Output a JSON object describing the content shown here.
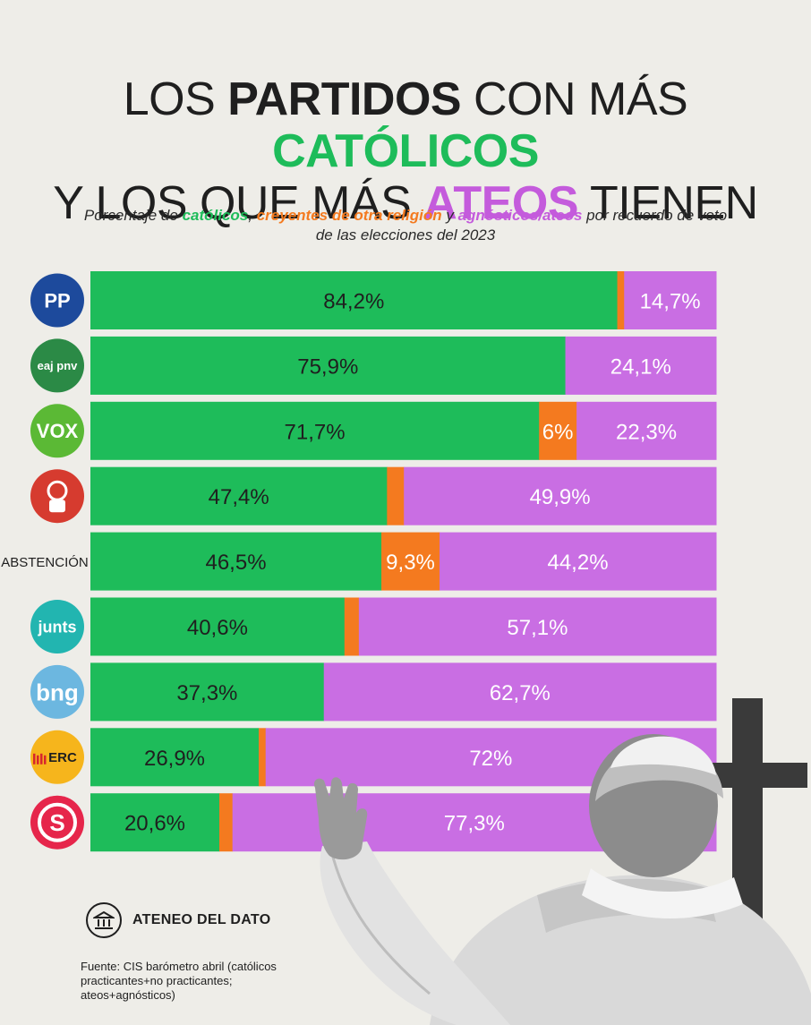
{
  "title": {
    "line1_a": "LOS ",
    "line1_b": "PARTIDOS",
    "line1_c": " CON MÁS ",
    "line1_d": "CATÓLICOS",
    "line2_a": "Y LOS QUE MÁS ",
    "line2_b": "ATEOS",
    "line2_c": " TIENEN"
  },
  "subtitle": {
    "part1": "Porcentaje de ",
    "catolicos": "católicos",
    "comma": ", ",
    "otra": "creyentes de otra religión",
    "y": " y ",
    "ateos": "agnósticos/ateos",
    "part2": " por recuerdo de voto de las elecciones del 2023"
  },
  "colors": {
    "catolicos": "#1ebc5a",
    "otra": "#f47a1f",
    "ateos": "#c96ee3"
  },
  "chart_data": {
    "type": "bar",
    "orientation": "horizontal",
    "stacked": true,
    "categories": [
      "PP",
      "EAJ-PNV",
      "VOX",
      "PSOE",
      "ABSTENCIÓN",
      "Junts",
      "BNG",
      "ERC",
      "Sumar"
    ],
    "series": [
      {
        "name": "católicos",
        "values": [
          84.2,
          75.9,
          71.7,
          47.4,
          46.5,
          40.6,
          37.3,
          26.9,
          20.6
        ],
        "labels": [
          "84,2%",
          "75,9%",
          "71,7%",
          "47,4%",
          "46,5%",
          "40,6%",
          "37,3%",
          "26,9%",
          "20,6%"
        ]
      },
      {
        "name": "creyentes de otra religión",
        "values": [
          1.1,
          0,
          6,
          2.7,
          9.3,
          2.3,
          0,
          1.1,
          2.1
        ],
        "labels": [
          "",
          "",
          "6%",
          "",
          "9,3%",
          "",
          "",
          "",
          ""
        ]
      },
      {
        "name": "agnósticos/ateos",
        "values": [
          14.7,
          24.1,
          22.3,
          49.9,
          44.2,
          57.1,
          62.7,
          72,
          77.3
        ],
        "labels": [
          "14,7%",
          "24,1%",
          "22,3%",
          "49,9%",
          "44,2%",
          "57,1%",
          "62,7%",
          "72%",
          "77,3%"
        ]
      }
    ],
    "xlim": [
      0,
      100
    ]
  },
  "parties": [
    {
      "name": "PP",
      "logo_text": "PP",
      "color": "#1d4a9c",
      "text_color": "#ffffff"
    },
    {
      "name": "EAJ-PNV",
      "logo_text": "eaj pnv",
      "color": "#2b8a46",
      "text_color": "#ffffff"
    },
    {
      "name": "VOX",
      "logo_text": "VOX",
      "color": "#5bb935",
      "text_color": "#ffffff"
    },
    {
      "name": "PSOE",
      "logo_text": "",
      "color": "#d63b2f",
      "text_color": "#ffffff"
    },
    {
      "name": "ABSTENCIÓN",
      "logo_text": "ABSTENCIÓN",
      "color": "",
      "text_color": "#1f1f1f"
    },
    {
      "name": "Junts",
      "logo_text": "junts",
      "color": "#22b5b0",
      "text_color": "#ffffff"
    },
    {
      "name": "BNG",
      "logo_text": "bng",
      "color": "#6cb7e0",
      "text_color": "#ffffff"
    },
    {
      "name": "ERC",
      "logo_text": "ERC",
      "color": "#f6b51c",
      "text_color": "#1f1f1f"
    },
    {
      "name": "Sumar",
      "logo_text": "S",
      "color": "#e6264b",
      "text_color": "#ffffff"
    }
  ],
  "brand": "ATENEO DEL DATO",
  "source": "Fuente: CIS barómetro abril (católicos practicantes+no practicantes; ateos+agnósticos)"
}
